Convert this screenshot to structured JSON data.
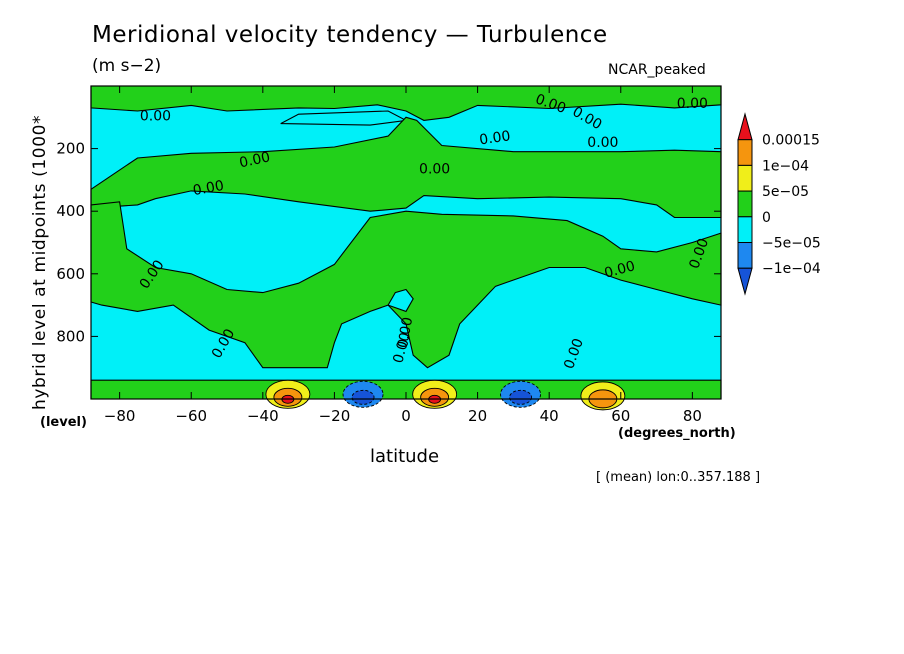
{
  "chart_data": {
    "type": "heatmap",
    "title": "Meridional velocity tendency — Turbulence",
    "subtitle_units": "(m s−2)",
    "case_label": "NCAR_peaked",
    "xlabel": "latitude",
    "xlabel_units": "(degrees_north)",
    "ylabel": "hybrid level at midpoints (1000*",
    "ylabel_units": "(level)",
    "footnote": "[ (mean) lon:0..357.188 ]",
    "xlim": [
      -88,
      88
    ],
    "ylim": [
      1000,
      0
    ],
    "x_ticks": [
      -80,
      -60,
      -40,
      -20,
      0,
      20,
      40,
      60,
      80
    ],
    "x_tick_labels": [
      "−80",
      "−60",
      "−40",
      "−20",
      "0",
      "20",
      "40",
      "60",
      "80"
    ],
    "y_ticks": [
      200,
      400,
      600,
      800
    ],
    "y_tick_labels": [
      "200",
      "400",
      "600",
      "800"
    ],
    "contour_label": "0.00",
    "colorbar": {
      "labels": [
        "0.00015",
        "1e−04",
        "5e−05",
        "0",
        "−5e−05",
        "−1e−04"
      ],
      "colors": [
        "#e8101c",
        "#f5950e",
        "#f0ee1a",
        "#22d01a",
        "#00f0f8",
        "#1e88f0",
        "#1654d8"
      ],
      "extend": "both"
    },
    "regions": {
      "positive_bands": [
        {
          "x": [
            -88,
            88
          ],
          "y": [
            1000,
            940
          ]
        }
      ],
      "strong_positive_spots": [
        {
          "lat": -33,
          "level": 985,
          "value": 0.00015
        },
        {
          "lat": 8,
          "level": 985,
          "value": 0.00015
        },
        {
          "lat": 55,
          "level": 990,
          "value": 0.0001
        }
      ],
      "strong_negative_spots": [
        {
          "lat": -12,
          "level": 985,
          "value": -0.0001
        },
        {
          "lat": 32,
          "level": 985,
          "value": -0.0001
        }
      ]
    },
    "grid": false,
    "legend_placement": "right"
  }
}
